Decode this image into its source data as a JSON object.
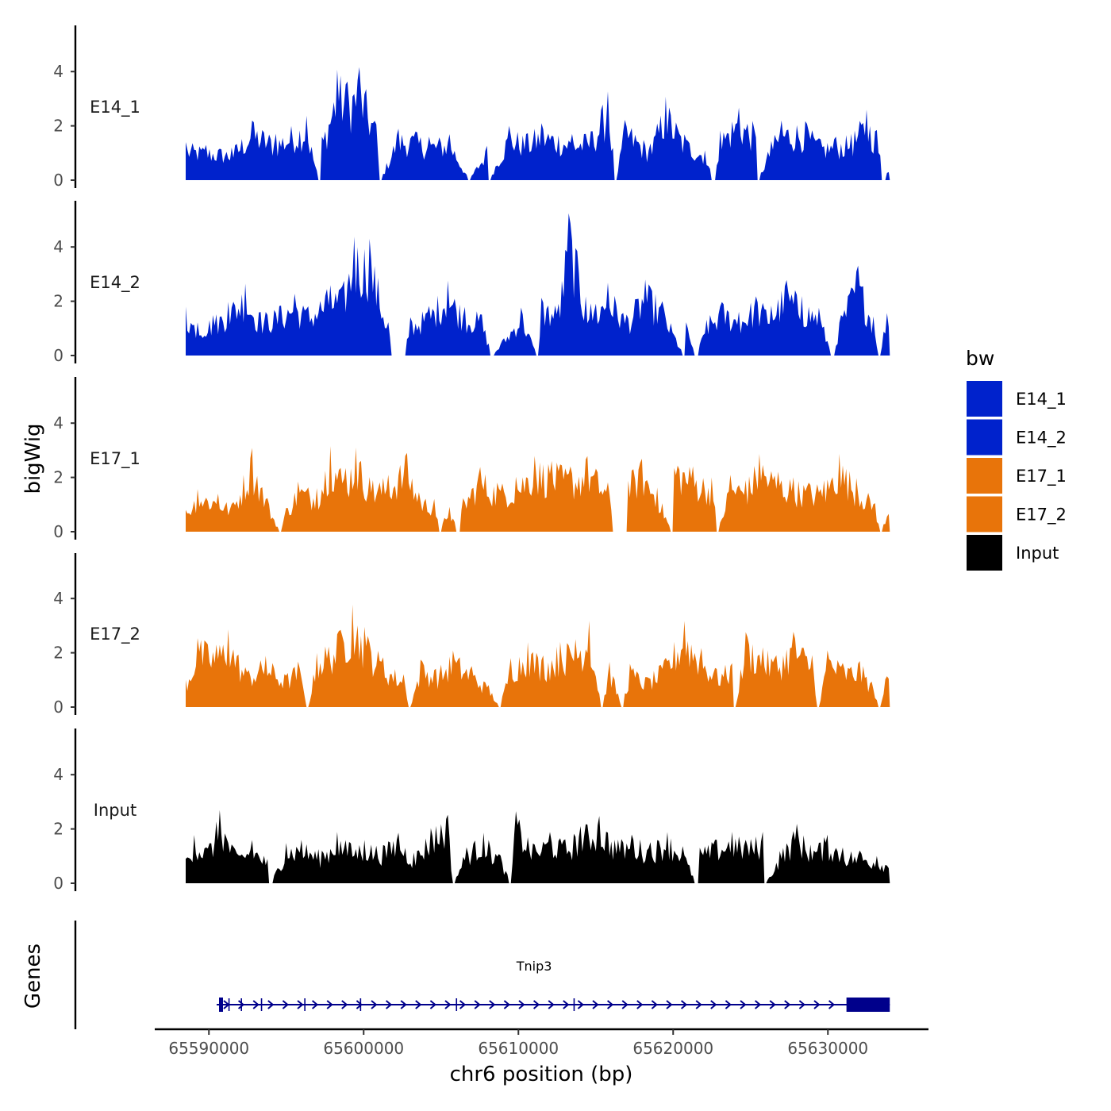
{
  "chart_data": {
    "type": "area",
    "chromosome": "chr6",
    "xlabel": "chr6 position (bp)",
    "ylabel": "bigWig",
    "genes_axis_label": "Genes",
    "xlim": [
      65586500,
      65636500
    ],
    "x_ticks": [
      65590000,
      65600000,
      65610000,
      65620000,
      65630000
    ],
    "x_tick_labels": [
      "65590000",
      "65600000",
      "65610000",
      "65620000",
      "65630000"
    ],
    "ylim": [
      0,
      5.8
    ],
    "y_ticks": [
      0,
      2,
      4
    ],
    "y_tick_labels": [
      "0",
      "2",
      "4"
    ],
    "legend": {
      "title": "bw",
      "entries": [
        {
          "label": "E14_1",
          "color": "#0022cc"
        },
        {
          "label": "E14_2",
          "color": "#0022cc"
        },
        {
          "label": "E17_1",
          "color": "#e8740a"
        },
        {
          "label": "E17_2",
          "color": "#e8740a"
        },
        {
          "label": "Input",
          "color": "#000000"
        }
      ]
    },
    "region": {
      "start": 65588500,
      "end": 65634000
    },
    "series": [
      {
        "name": "E14_1",
        "color": "#0022cc",
        "peaks": [
          [
            65588500,
            1.4
          ],
          [
            65589800,
            1.3
          ],
          [
            65591500,
            1.2
          ],
          [
            65592800,
            2.2
          ],
          [
            65594300,
            1.7
          ],
          [
            65596300,
            2.4
          ],
          [
            65597300,
            1.6
          ],
          [
            65598300,
            4.1
          ],
          [
            65599000,
            3.6
          ],
          [
            65599700,
            4.2
          ],
          [
            65600800,
            2.2
          ],
          [
            65602200,
            1.9
          ],
          [
            65603300,
            1.8
          ],
          [
            65604200,
            1.6
          ],
          [
            65605600,
            1.7
          ],
          [
            65608000,
            1.3
          ],
          [
            65609400,
            2.0
          ],
          [
            65610500,
            1.7
          ],
          [
            65611500,
            2.1
          ],
          [
            65613500,
            1.7
          ],
          [
            65614700,
            1.8
          ],
          [
            65615800,
            3.3
          ],
          [
            65616900,
            2.3
          ],
          [
            65618500,
            1.3
          ],
          [
            65619500,
            3.1
          ],
          [
            65620700,
            1.7
          ],
          [
            65622000,
            1.2
          ],
          [
            65623000,
            1.8
          ],
          [
            65624200,
            2.7
          ],
          [
            65625300,
            2.1
          ],
          [
            65626300,
            1.4
          ],
          [
            65627000,
            2.2
          ],
          [
            65628500,
            2.2
          ],
          [
            65629500,
            1.5
          ],
          [
            65630500,
            1.6
          ],
          [
            65631500,
            1.7
          ],
          [
            65632500,
            2.6
          ],
          [
            65633200,
            1.8
          ],
          [
            65634000,
            0.6
          ]
        ],
        "zeros": [
          65597100,
          65601100,
          65606800,
          65608100,
          65616300,
          65622600,
          65625500,
          65633600
        ]
      },
      {
        "name": "E14_2",
        "color": "#0022cc",
        "peaks": [
          [
            65588500,
            1.8
          ],
          [
            65589300,
            1.2
          ],
          [
            65590300,
            1.5
          ],
          [
            65591300,
            2.0
          ],
          [
            65592300,
            2.7
          ],
          [
            65593300,
            1.6
          ],
          [
            65594500,
            1.8
          ],
          [
            65595500,
            2.3
          ],
          [
            65596400,
            1.8
          ],
          [
            65597800,
            2.6
          ],
          [
            65598600,
            2.5
          ],
          [
            65599400,
            4.4
          ],
          [
            65600400,
            4.3
          ],
          [
            65601600,
            1.2
          ],
          [
            65603000,
            1.4
          ],
          [
            65604200,
            1.8
          ],
          [
            65605400,
            2.8
          ],
          [
            65606500,
            1.8
          ],
          [
            65607600,
            1.6
          ],
          [
            65609000,
            0.6
          ],
          [
            65610200,
            1.8
          ],
          [
            65611500,
            2.2
          ],
          [
            65612600,
            1.9
          ],
          [
            65613300,
            5.5
          ],
          [
            65614300,
            2.2
          ],
          [
            65615000,
            1.9
          ],
          [
            65615800,
            2.7
          ],
          [
            65617000,
            1.5
          ],
          [
            65618200,
            2.8
          ],
          [
            65619300,
            2.0
          ],
          [
            65620800,
            1.3
          ],
          [
            65622200,
            1.4
          ],
          [
            65623200,
            2.0
          ],
          [
            65624300,
            1.6
          ],
          [
            65625300,
            2.2
          ],
          [
            65626300,
            1.8
          ],
          [
            65627300,
            2.8
          ],
          [
            65628300,
            2.2
          ],
          [
            65629400,
            1.8
          ],
          [
            65630800,
            1.4
          ],
          [
            65631900,
            3.4
          ],
          [
            65632900,
            1.6
          ],
          [
            65634000,
            2.3
          ]
        ],
        "zeros": [
          65601900,
          65602600,
          65608300,
          65611200,
          65620700,
          65621500,
          65630300,
          65633300
        ]
      },
      {
        "name": "E17_1",
        "color": "#e8740a",
        "peaks": [
          [
            65588500,
            0.8
          ],
          [
            65589300,
            1.6
          ],
          [
            65590600,
            1.4
          ],
          [
            65591500,
            1.0
          ],
          [
            65592800,
            3.1
          ],
          [
            65593800,
            1.2
          ],
          [
            65595000,
            0.9
          ],
          [
            65595800,
            1.9
          ],
          [
            65597000,
            1.6
          ],
          [
            65597800,
            3.2
          ],
          [
            65598800,
            2.3
          ],
          [
            65599500,
            3.1
          ],
          [
            65600600,
            1.9
          ],
          [
            65601600,
            2.1
          ],
          [
            65602800,
            2.9
          ],
          [
            65603600,
            1.4
          ],
          [
            65604600,
            1.2
          ],
          [
            65605500,
            1.0
          ],
          [
            65606400,
            1.2
          ],
          [
            65607500,
            2.4
          ],
          [
            65608600,
            1.8
          ],
          [
            65609800,
            2.0
          ],
          [
            65611000,
            2.8
          ],
          [
            65612200,
            2.6
          ],
          [
            65613400,
            2.4
          ],
          [
            65614500,
            2.8
          ],
          [
            65615800,
            1.8
          ],
          [
            65617000,
            2.1
          ],
          [
            65618000,
            2.7
          ],
          [
            65619000,
            1.6
          ],
          [
            65620000,
            3.0
          ],
          [
            65621300,
            2.4
          ],
          [
            65622500,
            2.0
          ],
          [
            65623700,
            2.1
          ],
          [
            65624700,
            1.9
          ],
          [
            65625600,
            2.9
          ],
          [
            65626800,
            2.2
          ],
          [
            65627800,
            2.0
          ],
          [
            65628800,
            1.8
          ],
          [
            65629800,
            1.9
          ],
          [
            65630700,
            2.9
          ],
          [
            65631800,
            2.0
          ],
          [
            65633000,
            1.2
          ],
          [
            65634000,
            0.9
          ]
        ],
        "zeros": [
          65594600,
          65604900,
          65606100,
          65616200,
          65616900,
          65619900,
          65622900,
          65633400
        ]
      },
      {
        "name": "E17_2",
        "color": "#e8740a",
        "peaks": [
          [
            65588500,
            1.0
          ],
          [
            65589300,
            2.6
          ],
          [
            65590500,
            2.3
          ],
          [
            65591300,
            2.9
          ],
          [
            65592400,
            1.4
          ],
          [
            65593700,
            1.9
          ],
          [
            65594900,
            1.2
          ],
          [
            65595800,
            1.7
          ],
          [
            65597000,
            2.1
          ],
          [
            65598400,
            2.8
          ],
          [
            65599300,
            3.8
          ],
          [
            65600100,
            2.9
          ],
          [
            65601300,
            1.8
          ],
          [
            65602600,
            1.2
          ],
          [
            65603700,
            1.8
          ],
          [
            65604700,
            1.4
          ],
          [
            65605800,
            2.1
          ],
          [
            65607000,
            1.5
          ],
          [
            65608100,
            0.8
          ],
          [
            65609500,
            1.8
          ],
          [
            65610600,
            2.4
          ],
          [
            65611600,
            1.9
          ],
          [
            65612700,
            2.4
          ],
          [
            65613700,
            2.5
          ],
          [
            65614600,
            3.2
          ],
          [
            65615900,
            1.7
          ],
          [
            65617200,
            1.6
          ],
          [
            65618300,
            1.1
          ],
          [
            65619400,
            1.7
          ],
          [
            65620700,
            3.2
          ],
          [
            65621800,
            2.2
          ],
          [
            65622800,
            1.4
          ],
          [
            65623800,
            1.7
          ],
          [
            65624700,
            2.8
          ],
          [
            65625800,
            2.2
          ],
          [
            65626700,
            1.9
          ],
          [
            65627800,
            2.8
          ],
          [
            65629000,
            1.9
          ],
          [
            65630000,
            2.2
          ],
          [
            65631000,
            1.6
          ],
          [
            65632100,
            1.7
          ],
          [
            65632800,
            1.0
          ],
          [
            65634000,
            1.8
          ]
        ],
        "zeros": [
          65596400,
          65603000,
          65608800,
          65615400,
          65616700,
          65624000,
          65629400,
          65633300
        ]
      },
      {
        "name": "Input",
        "color": "#000000",
        "peaks": [
          [
            65588500,
            0.9
          ],
          [
            65589000,
            1.8
          ],
          [
            65590000,
            1.4
          ],
          [
            65590700,
            2.7
          ],
          [
            65591800,
            1.1
          ],
          [
            65592800,
            1.6
          ],
          [
            65594000,
            0.8
          ],
          [
            65595000,
            1.5
          ],
          [
            65596000,
            1.6
          ],
          [
            65597300,
            1.2
          ],
          [
            65598300,
            1.9
          ],
          [
            65599100,
            1.5
          ],
          [
            65600100,
            1.6
          ],
          [
            65601300,
            1.4
          ],
          [
            65602200,
            1.9
          ],
          [
            65603200,
            1.1
          ],
          [
            65604300,
            2.0
          ],
          [
            65605400,
            2.8
          ],
          [
            65606600,
            1.3
          ],
          [
            65607700,
            1.9
          ],
          [
            65608800,
            1.1
          ],
          [
            65609800,
            2.7
          ],
          [
            65611000,
            1.4
          ],
          [
            65612000,
            1.9
          ],
          [
            65613000,
            1.6
          ],
          [
            65614000,
            2.1
          ],
          [
            65615200,
            2.5
          ],
          [
            65616400,
            1.6
          ],
          [
            65617300,
            1.8
          ],
          [
            65618500,
            1.5
          ],
          [
            65619600,
            1.9
          ],
          [
            65620600,
            1.4
          ],
          [
            65621700,
            1.3
          ],
          [
            65622700,
            1.6
          ],
          [
            65623800,
            1.9
          ],
          [
            65624700,
            1.6
          ],
          [
            65625800,
            1.9
          ],
          [
            65626900,
            1.2
          ],
          [
            65628000,
            2.2
          ],
          [
            65628900,
            1.4
          ],
          [
            65630000,
            1.8
          ],
          [
            65631000,
            1.3
          ],
          [
            65632100,
            1.2
          ],
          [
            65633200,
            1.0
          ],
          [
            65634000,
            0.8
          ]
        ],
        "zeros": [
          65594000,
          65605800,
          65609500,
          65621500,
          65626000
        ]
      }
    ],
    "gene": {
      "name": "Tnip3",
      "start": 65590500,
      "end": 65634000,
      "strand": "+",
      "utr_start": 65631200,
      "exons": [
        65591300,
        65592100,
        65593400,
        65596200,
        65599800,
        65606000,
        65613600
      ]
    }
  }
}
